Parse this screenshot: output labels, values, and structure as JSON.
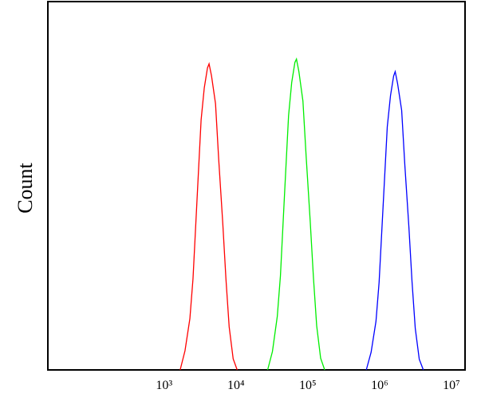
{
  "chart_data": {
    "type": "line",
    "x_scale": "log",
    "y_label": "Count",
    "xlim": [
      24,
      15500000
    ],
    "ylim": [
      0,
      100
    ],
    "xticks": [
      {
        "value": 1000,
        "label": "10³"
      },
      {
        "value": 10000,
        "label": "10⁴"
      },
      {
        "value": 100000,
        "label": "10⁵"
      },
      {
        "value": 1000000,
        "label": "10⁶"
      },
      {
        "value": 10000000,
        "label": "10⁷"
      }
    ],
    "series": [
      {
        "color": "#ff0000",
        "x": [
          1670,
          1950,
          2280,
          2520,
          2870,
          3270,
          3620,
          4010,
          4220,
          4560,
          5190,
          5750,
          6550,
          7250,
          8040,
          9140,
          10400
        ],
        "values": [
          0,
          5.2,
          13.9,
          24.7,
          46.3,
          67.9,
          76.6,
          82,
          83.1,
          79.9,
          72.3,
          57.1,
          39.8,
          24.7,
          11.7,
          3.0,
          0
        ]
      },
      {
        "color": "#00ee00",
        "x": [
          27600,
          32200,
          37600,
          41600,
          47400,
          54000,
          59700,
          66200,
          69600,
          75200,
          85600,
          94900,
          108000,
          120000,
          133000,
          151000,
          172000
        ],
        "values": [
          0,
          5.0,
          14.5,
          25.5,
          47.5,
          69,
          78,
          83.5,
          84.4,
          81,
          73,
          58,
          40.5,
          25,
          12,
          3.2,
          0
        ]
      },
      {
        "color": "#0000ff",
        "x": [
          653000,
          762000,
          891000,
          985000,
          1120000,
          1280000,
          1420000,
          1570000,
          1650000,
          1780000,
          2030000,
          2250000,
          2560000,
          2830000,
          3140000,
          3570000,
          4070000
        ],
        "values": [
          0,
          4.8,
          13.2,
          23.8,
          44.5,
          66,
          74.5,
          79.8,
          81,
          77.8,
          70.5,
          55.5,
          38.8,
          24,
          11.3,
          2.9,
          0
        ]
      }
    ]
  }
}
